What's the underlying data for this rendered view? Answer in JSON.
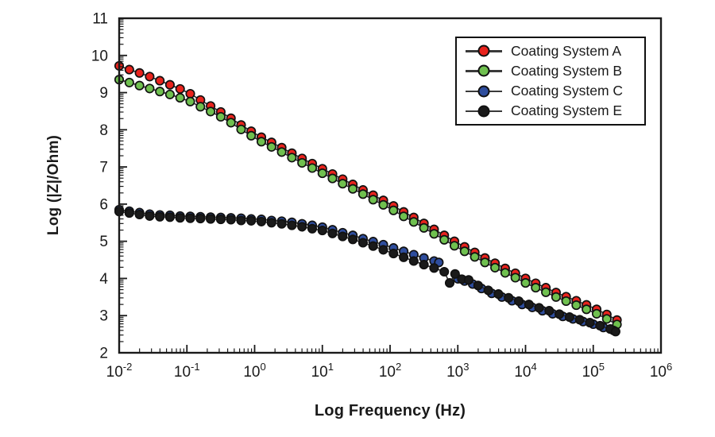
{
  "chart_data": {
    "type": "line",
    "title": "",
    "xlabel": "Log Frequency (Hz)",
    "ylabel": "Log (|Z|/Ohm)",
    "x_scale": "log",
    "x_unit": "Hz",
    "x_tick_exponents": [
      -2,
      -1,
      0,
      1,
      2,
      3,
      4,
      5,
      6
    ],
    "y_ticks": [
      2,
      3,
      4,
      5,
      6,
      7,
      8,
      9,
      10,
      11
    ],
    "xlim_log": [
      -2,
      6
    ],
    "ylim": [
      2,
      11
    ],
    "grid": false,
    "legend_position": "top-right",
    "axis_color": "#1a1a1a",
    "connector_line_color": "#2a2a2a",
    "marker_edge_color": "#111111",
    "series": [
      {
        "name": "Coating System A",
        "color": "#e8231d",
        "points": [
          [
            -2.0,
            9.72
          ],
          [
            -1.85,
            9.62
          ],
          [
            -1.7,
            9.53
          ],
          [
            -1.55,
            9.43
          ],
          [
            -1.4,
            9.32
          ],
          [
            -1.25,
            9.21
          ],
          [
            -1.1,
            9.1
          ],
          [
            -0.95,
            8.97
          ],
          [
            -0.8,
            8.8
          ],
          [
            -0.65,
            8.64
          ],
          [
            -0.5,
            8.48
          ],
          [
            -0.35,
            8.31
          ],
          [
            -0.2,
            8.13
          ],
          [
            -0.05,
            7.96
          ],
          [
            0.1,
            7.8
          ],
          [
            0.25,
            7.66
          ],
          [
            0.4,
            7.52
          ],
          [
            0.55,
            7.37
          ],
          [
            0.7,
            7.23
          ],
          [
            0.85,
            7.09
          ],
          [
            1.0,
            6.95
          ],
          [
            1.15,
            6.81
          ],
          [
            1.3,
            6.67
          ],
          [
            1.45,
            6.53
          ],
          [
            1.6,
            6.38
          ],
          [
            1.75,
            6.24
          ],
          [
            1.9,
            6.1
          ],
          [
            2.05,
            5.95
          ],
          [
            2.2,
            5.79
          ],
          [
            2.35,
            5.64
          ],
          [
            2.5,
            5.48
          ],
          [
            2.65,
            5.32
          ],
          [
            2.8,
            5.16
          ],
          [
            2.95,
            5.0
          ],
          [
            3.1,
            4.85
          ],
          [
            3.25,
            4.7
          ],
          [
            3.4,
            4.55
          ],
          [
            3.55,
            4.41
          ],
          [
            3.7,
            4.27
          ],
          [
            3.85,
            4.14
          ],
          [
            4.0,
            4.0
          ],
          [
            4.15,
            3.87
          ],
          [
            4.3,
            3.75
          ],
          [
            4.45,
            3.62
          ],
          [
            4.6,
            3.51
          ],
          [
            4.75,
            3.4
          ],
          [
            4.9,
            3.29
          ],
          [
            5.05,
            3.17
          ],
          [
            5.2,
            3.03
          ],
          [
            5.35,
            2.88
          ]
        ]
      },
      {
        "name": "Coating System B",
        "color": "#6fc04f",
        "points": [
          [
            -2.0,
            9.35
          ],
          [
            -1.85,
            9.27
          ],
          [
            -1.7,
            9.19
          ],
          [
            -1.55,
            9.11
          ],
          [
            -1.4,
            9.03
          ],
          [
            -1.25,
            8.95
          ],
          [
            -1.1,
            8.86
          ],
          [
            -0.95,
            8.76
          ],
          [
            -0.8,
            8.62
          ],
          [
            -0.65,
            8.49
          ],
          [
            -0.5,
            8.35
          ],
          [
            -0.35,
            8.19
          ],
          [
            -0.2,
            8.01
          ],
          [
            -0.05,
            7.84
          ],
          [
            0.1,
            7.68
          ],
          [
            0.25,
            7.54
          ],
          [
            0.4,
            7.4
          ],
          [
            0.55,
            7.25
          ],
          [
            0.7,
            7.11
          ],
          [
            0.85,
            6.97
          ],
          [
            1.0,
            6.83
          ],
          [
            1.15,
            6.69
          ],
          [
            1.3,
            6.55
          ],
          [
            1.45,
            6.41
          ],
          [
            1.6,
            6.27
          ],
          [
            1.75,
            6.12
          ],
          [
            1.9,
            5.98
          ],
          [
            2.05,
            5.83
          ],
          [
            2.2,
            5.67
          ],
          [
            2.35,
            5.52
          ],
          [
            2.5,
            5.36
          ],
          [
            2.65,
            5.2
          ],
          [
            2.8,
            5.04
          ],
          [
            2.95,
            4.88
          ],
          [
            3.1,
            4.73
          ],
          [
            3.25,
            4.58
          ],
          [
            3.4,
            4.43
          ],
          [
            3.55,
            4.29
          ],
          [
            3.7,
            4.15
          ],
          [
            3.85,
            4.02
          ],
          [
            4.0,
            3.88
          ],
          [
            4.15,
            3.75
          ],
          [
            4.3,
            3.63
          ],
          [
            4.45,
            3.5
          ],
          [
            4.6,
            3.39
          ],
          [
            4.75,
            3.28
          ],
          [
            4.9,
            3.17
          ],
          [
            5.05,
            3.05
          ],
          [
            5.2,
            2.91
          ],
          [
            5.35,
            2.76
          ]
        ]
      },
      {
        "name": "Coating System C",
        "color": "#2e4d9d",
        "points": [
          [
            -2.0,
            5.85
          ],
          [
            -1.85,
            5.81
          ],
          [
            -1.7,
            5.77
          ],
          [
            -1.55,
            5.73
          ],
          [
            -1.4,
            5.71
          ],
          [
            -1.25,
            5.7
          ],
          [
            -1.1,
            5.68
          ],
          [
            -0.95,
            5.67
          ],
          [
            -0.8,
            5.66
          ],
          [
            -0.65,
            5.65
          ],
          [
            -0.5,
            5.64
          ],
          [
            -0.35,
            5.63
          ],
          [
            -0.2,
            5.62
          ],
          [
            -0.05,
            5.6
          ],
          [
            0.1,
            5.59
          ],
          [
            0.25,
            5.56
          ],
          [
            0.4,
            5.54
          ],
          [
            0.55,
            5.51
          ],
          [
            0.7,
            5.47
          ],
          [
            0.85,
            5.43
          ],
          [
            1.0,
            5.38
          ],
          [
            1.15,
            5.31
          ],
          [
            1.3,
            5.23
          ],
          [
            1.45,
            5.16
          ],
          [
            1.6,
            5.07
          ],
          [
            1.75,
            4.99
          ],
          [
            1.9,
            4.91
          ],
          [
            2.05,
            4.82
          ],
          [
            2.2,
            4.73
          ],
          [
            2.35,
            4.64
          ],
          [
            2.5,
            4.55
          ],
          [
            2.65,
            4.47
          ],
          [
            2.72,
            4.43
          ],
          [
            3.0,
            3.99
          ],
          [
            3.1,
            3.93
          ],
          [
            3.22,
            3.85
          ],
          [
            3.35,
            3.73
          ],
          [
            3.5,
            3.6
          ],
          [
            3.65,
            3.5
          ],
          [
            3.8,
            3.4
          ],
          [
            3.95,
            3.3
          ],
          [
            4.1,
            3.22
          ],
          [
            4.25,
            3.13
          ],
          [
            4.4,
            3.05
          ],
          [
            4.55,
            2.98
          ],
          [
            4.7,
            2.91
          ],
          [
            4.85,
            2.84
          ],
          [
            5.0,
            2.77
          ],
          [
            5.15,
            2.68
          ],
          [
            5.3,
            2.6
          ]
        ]
      },
      {
        "name": "Coating System E",
        "color": "#1a1a1a",
        "points": [
          [
            -2.0,
            5.8
          ],
          [
            -1.85,
            5.76
          ],
          [
            -1.7,
            5.72
          ],
          [
            -1.55,
            5.68
          ],
          [
            -1.4,
            5.66
          ],
          [
            -1.25,
            5.65
          ],
          [
            -1.1,
            5.63
          ],
          [
            -0.95,
            5.62
          ],
          [
            -0.8,
            5.61
          ],
          [
            -0.65,
            5.6
          ],
          [
            -0.5,
            5.59
          ],
          [
            -0.35,
            5.58
          ],
          [
            -0.2,
            5.56
          ],
          [
            -0.05,
            5.55
          ],
          [
            0.1,
            5.53
          ],
          [
            0.25,
            5.5
          ],
          [
            0.4,
            5.47
          ],
          [
            0.55,
            5.43
          ],
          [
            0.7,
            5.39
          ],
          [
            0.85,
            5.34
          ],
          [
            1.0,
            5.29
          ],
          [
            1.15,
            5.21
          ],
          [
            1.3,
            5.13
          ],
          [
            1.45,
            5.05
          ],
          [
            1.6,
            4.96
          ],
          [
            1.75,
            4.87
          ],
          [
            1.9,
            4.77
          ],
          [
            2.05,
            4.67
          ],
          [
            2.2,
            4.57
          ],
          [
            2.35,
            4.47
          ],
          [
            2.5,
            4.37
          ],
          [
            2.65,
            4.28
          ],
          [
            2.8,
            4.18
          ],
          [
            2.88,
            3.88
          ],
          [
            2.96,
            4.12
          ],
          [
            3.06,
            3.98
          ],
          [
            3.16,
            3.96
          ],
          [
            3.3,
            3.81
          ],
          [
            3.45,
            3.68
          ],
          [
            3.6,
            3.58
          ],
          [
            3.75,
            3.48
          ],
          [
            3.9,
            3.39
          ],
          [
            4.05,
            3.3
          ],
          [
            4.2,
            3.21
          ],
          [
            4.35,
            3.13
          ],
          [
            4.5,
            3.04
          ],
          [
            4.65,
            2.96
          ],
          [
            4.8,
            2.89
          ],
          [
            4.95,
            2.81
          ],
          [
            5.1,
            2.73
          ],
          [
            5.25,
            2.64
          ],
          [
            5.33,
            2.57
          ]
        ]
      }
    ]
  }
}
